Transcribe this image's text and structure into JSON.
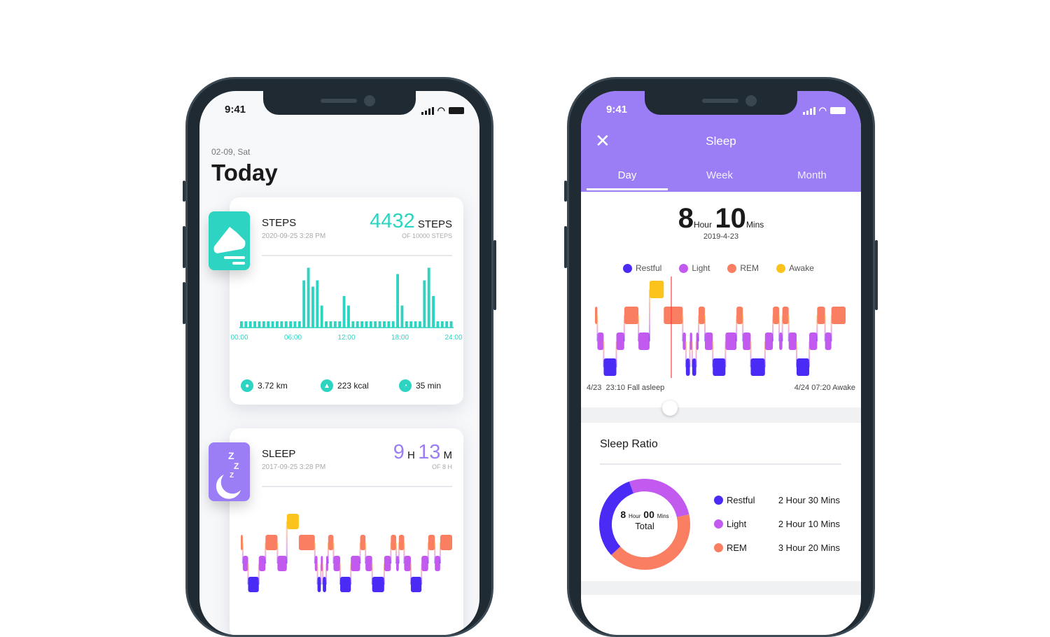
{
  "colors": {
    "teal": "#2dd4c2",
    "purple": "#9b7ef5",
    "restful": "#4a2bf5",
    "light": "#c25af0",
    "rem": "#fa7f62",
    "awake": "#fbc31c"
  },
  "phone1": {
    "status_time": "9:41",
    "date": "02-09, Sat",
    "title": "Today",
    "steps": {
      "title": "STEPS",
      "timestamp": "2020-09-25 3:28 PM",
      "value": "4432",
      "unit": "STEPS",
      "goal": "OF 10000 STEPS",
      "distance": "3.72 km",
      "calories": "223 kcal",
      "duration": "35 min"
    },
    "sleep": {
      "title": "SLEEP",
      "timestamp": "2017-09-25 3:28 PM",
      "hours": "9",
      "h_unit": "H",
      "mins": "13",
      "m_unit": "M",
      "goal": "OF 8 H"
    }
  },
  "phone2": {
    "status_time": "9:41",
    "title": "Sleep",
    "tabs": [
      "Day",
      "Week",
      "Month"
    ],
    "active_tab": 0,
    "total_hours": "8",
    "hour_label": "Hour",
    "total_mins": "10",
    "mins_label": "Mins",
    "date": "2019-4-23",
    "legend": [
      "Restful",
      "Light",
      "REM",
      "Awake"
    ],
    "start_label": "4/23  23:10 Fall asleep",
    "end_label": "4/24 07:20 Awake",
    "ratio": {
      "title": "Sleep Ratio",
      "center_hours": "8",
      "center_hour_label": "Hour",
      "center_mins": "00",
      "center_mins_label": "Mins",
      "center_total": "Total",
      "rows": [
        {
          "label": "Restful",
          "value": "2 Hour 30 Mins"
        },
        {
          "label": "Light",
          "value": "2 Hour 10 Mins"
        },
        {
          "label": "REM",
          "value": "3 Hour 20 Mins"
        }
      ]
    }
  },
  "chart_data": [
    {
      "type": "bar",
      "title": "Steps",
      "x_ticks": [
        "00:00",
        "06:00",
        "12:00",
        "18:00",
        "24:00"
      ],
      "values": [
        1,
        1,
        1,
        1,
        1,
        1,
        1,
        1,
        1,
        1,
        1,
        1,
        1,
        1,
        7.5,
        9.5,
        6.5,
        7.5,
        3.5,
        1,
        1,
        1,
        1,
        5,
        3.5,
        1,
        1,
        1,
        1,
        1,
        1,
        1,
        1,
        1,
        1,
        8.5,
        3.5,
        1,
        1,
        1,
        1,
        7.5,
        9.5,
        5,
        1,
        1,
        1,
        1
      ]
    },
    {
      "type": "area",
      "title": "Sleep stages",
      "stages": [
        "restful",
        "light",
        "rem",
        "awake"
      ],
      "segments": [
        [
          "rem",
          3
        ],
        [
          "light",
          8
        ],
        [
          "restful",
          16
        ],
        [
          "light",
          10
        ],
        [
          "rem",
          18
        ],
        [
          "light",
          14
        ],
        [
          "awake",
          18
        ],
        [
          "rem",
          24
        ],
        [
          "light",
          4
        ],
        [
          "restful",
          5
        ],
        [
          "light",
          3
        ],
        [
          "restful",
          5
        ],
        [
          "light",
          3
        ],
        [
          "rem",
          8
        ],
        [
          "light",
          10
        ],
        [
          "restful",
          16
        ],
        [
          "light",
          14
        ],
        [
          "rem",
          8
        ],
        [
          "light",
          10
        ],
        [
          "restful",
          18
        ],
        [
          "light",
          10
        ],
        [
          "rem",
          8
        ],
        [
          "light",
          4
        ],
        [
          "rem",
          8
        ],
        [
          "light",
          10
        ],
        [
          "restful",
          16
        ],
        [
          "light",
          10
        ],
        [
          "rem",
          10
        ],
        [
          "light",
          8
        ],
        [
          "rem",
          18
        ]
      ]
    },
    {
      "type": "pie",
      "title": "Sleep Ratio",
      "labels": [
        "Light",
        "REM",
        "Restful"
      ],
      "values": [
        130,
        200,
        150
      ]
    }
  ]
}
